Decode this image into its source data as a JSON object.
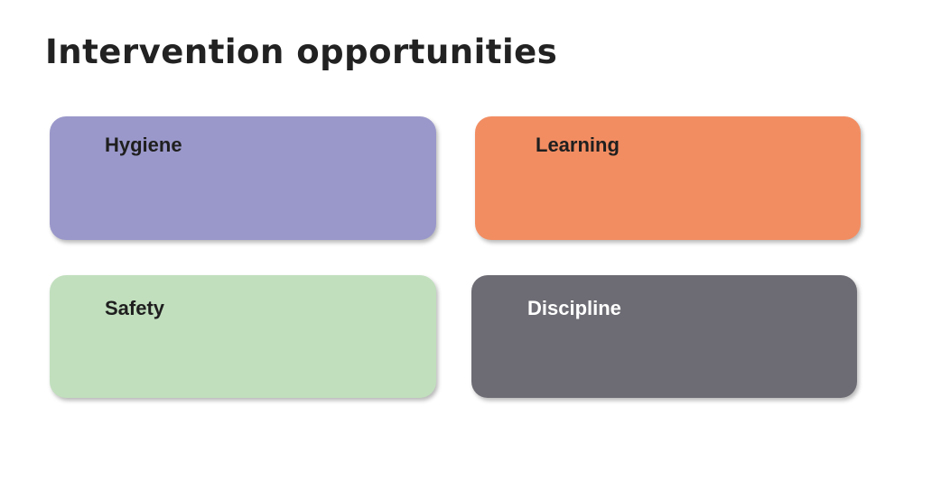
{
  "slide": {
    "title": "Intervention opportunities"
  },
  "cards": [
    {
      "label": "Hygiene",
      "color": "#9a98ca",
      "text_color": "#1f1f1f"
    },
    {
      "label": "Learning",
      "color": "#f28d62",
      "text_color": "#1f1f1f"
    },
    {
      "label": "Safety",
      "color": "#c1dfbd",
      "text_color": "#1f1f1f"
    },
    {
      "label": "Discipline",
      "color": "#6d6c74",
      "text_color": "#ffffff"
    }
  ]
}
